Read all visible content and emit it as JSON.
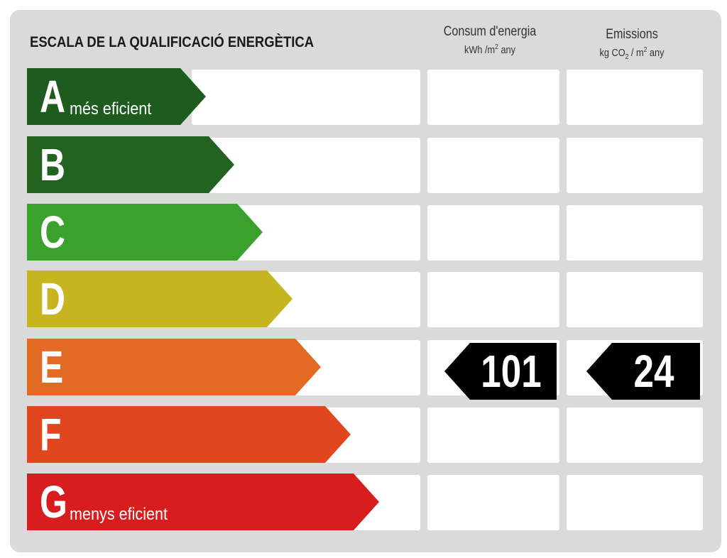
{
  "header": {
    "title": "ESCALA DE LA QUALIFICACIÓ ENERGÈTICA",
    "consum_title": "Consum d'energia",
    "consum_unit_prefix": "kWh /m",
    "consum_unit_exp": "2",
    "consum_unit_suffix": " any",
    "emissions_title": "Emissions",
    "emissions_unit_prefix": "kg CO",
    "emissions_unit_sub": "2",
    "emissions_unit_mid": " / m",
    "emissions_unit_exp": "2",
    "emissions_unit_suffix": " any"
  },
  "grades": [
    {
      "letter": "A",
      "caption": "més eficient",
      "color": "#1e5b1f"
    },
    {
      "letter": "B",
      "caption": "",
      "color": "#21631f"
    },
    {
      "letter": "C",
      "caption": "",
      "color": "#3aa12c"
    },
    {
      "letter": "D",
      "caption": "",
      "color": "#c7b51f"
    },
    {
      "letter": "E",
      "caption": "",
      "color": "#e26a22"
    },
    {
      "letter": "F",
      "caption": "",
      "color": "#e2461f"
    },
    {
      "letter": "G",
      "caption": "menys eficient",
      "color": "#d81d1f"
    }
  ],
  "rating": {
    "grade": "E",
    "consum_value": "101",
    "emissions_value": "24",
    "tag_color": "#000000"
  }
}
